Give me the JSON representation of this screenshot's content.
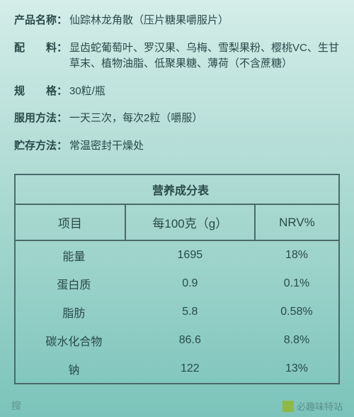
{
  "info": {
    "productName": {
      "label": "产品名称：",
      "value": "仙踪林龙角散（压片糖果嚼服片）"
    },
    "ingredients": {
      "label": "配　　料：",
      "value": "显齿蛇葡萄叶、罗汉果、乌梅、雪梨果粉、樱桃VC、生甘草末、植物油脂、低聚果糖、薄荷（不含蔗糖）"
    },
    "spec": {
      "label": "规　　格：",
      "value": "30粒/瓶"
    },
    "usage": {
      "label": "服用方法：",
      "value": "一天三次，每次2粒（嚼服）"
    },
    "storage": {
      "label": "贮存方法：",
      "value": "常温密封干燥处"
    }
  },
  "nutrition": {
    "title": "营养成分表",
    "headers": {
      "item": "项目",
      "per100g": "每100克（g）",
      "nrv": "NRV%"
    },
    "rows": [
      {
        "item": "能量",
        "per100g": "1695",
        "nrv": "18%"
      },
      {
        "item": "蛋白质",
        "per100g": "0.9",
        "nrv": "0.1%"
      },
      {
        "item": "脂肪",
        "per100g": "5.8",
        "nrv": "0.58%"
      },
      {
        "item": "碳水化合物",
        "per100g": "86.6",
        "nrv": "8.8%"
      },
      {
        "item": "钠",
        "per100g": "122",
        "nrv": "13%"
      }
    ]
  },
  "watermark": {
    "left": "搜",
    "right": "必趣味特站"
  },
  "styling": {
    "bg_gradient_from": "#d4ede8",
    "bg_gradient_to": "#7bc4bb",
    "border_color": "#4a6a6a",
    "text_color": "#2a4a4a",
    "info_fontsize": 15,
    "table_title_fontsize": 20,
    "table_header_fontsize": 17,
    "table_cell_fontsize": 16
  }
}
